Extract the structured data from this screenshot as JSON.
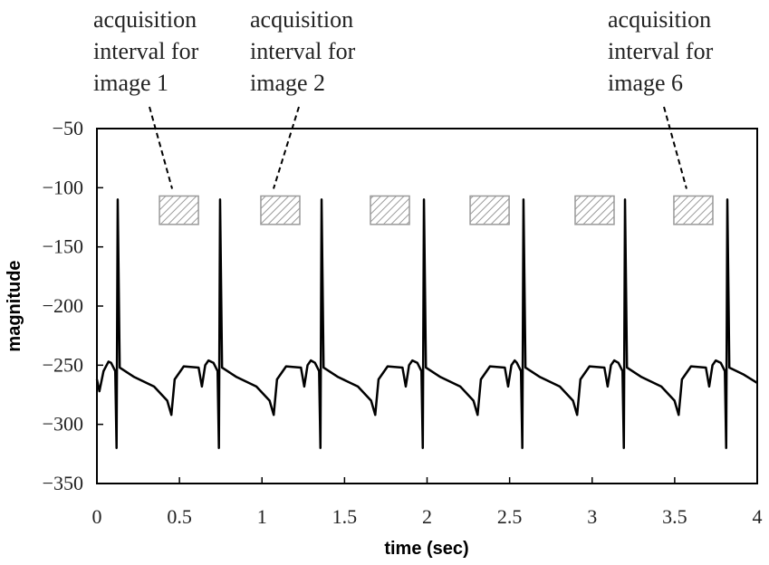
{
  "chart_data": {
    "type": "line",
    "xlabel": "time (sec)",
    "ylabel": "magnitude",
    "xlim": [
      0,
      4
    ],
    "ylim": [
      -350,
      -50
    ],
    "xticks": [
      0,
      0.5,
      1,
      1.5,
      2,
      2.5,
      3,
      3.5,
      4
    ],
    "yticks": [
      {
        "value": -50,
        "label": "−50"
      },
      {
        "value": -100,
        "label": "−100"
      },
      {
        "value": -150,
        "label": "−150"
      },
      {
        "value": -200,
        "label": "−200"
      },
      {
        "value": -250,
        "label": "−250"
      },
      {
        "value": -300,
        "label": "−300"
      },
      {
        "value": -350,
        "label": "−350"
      }
    ],
    "color": "#000000",
    "x": [
      0,
      0.015,
      0.04,
      0.07,
      0.086,
      0.111,
      0.119,
      0.126,
      0.138,
      0.226,
      0.346,
      0.426,
      0.451,
      0.471,
      0.526,
      0.616,
      0.636,
      0.656,
      0.676,
      0.706,
      0.731,
      0.739,
      0.746,
      0.758,
      0.846,
      0.966,
      1.046,
      1.071,
      1.091,
      1.146,
      1.236,
      1.256,
      1.276,
      1.296,
      1.321,
      1.346,
      1.354,
      1.361,
      1.373,
      1.461,
      1.581,
      1.661,
      1.686,
      1.706,
      1.761,
      1.851,
      1.871,
      1.891,
      1.911,
      1.941,
      1.966,
      1.974,
      1.981,
      1.993,
      2.081,
      2.201,
      2.281,
      2.306,
      2.326,
      2.381,
      2.471,
      2.491,
      2.511,
      2.531,
      2.544,
      2.569,
      2.577,
      2.584,
      2.596,
      2.684,
      2.804,
      2.884,
      2.909,
      2.929,
      2.984,
      3.074,
      3.094,
      3.114,
      3.134,
      3.159,
      3.184,
      3.192,
      3.199,
      3.211,
      3.299,
      3.419,
      3.499,
      3.524,
      3.544,
      3.599,
      3.689,
      3.709,
      3.729,
      3.749,
      3.779,
      3.804,
      3.812,
      3.819,
      3.831,
      3.919,
      4.0
    ],
    "values": [
      -262,
      -272,
      -255,
      -247,
      -248,
      -255,
      -320,
      -110,
      -252,
      -260,
      -268,
      -280,
      -292,
      -262,
      -251,
      -252,
      -268,
      -250,
      -246,
      -248,
      -255,
      -320,
      -110,
      -252,
      -260,
      -268,
      -280,
      -292,
      -262,
      -251,
      -252,
      -268,
      -250,
      -246,
      -248,
      -255,
      -320,
      -110,
      -252,
      -260,
      -268,
      -280,
      -292,
      -262,
      -251,
      -252,
      -268,
      -250,
      -246,
      -248,
      -255,
      -320,
      -110,
      -252,
      -260,
      -268,
      -280,
      -292,
      -262,
      -251,
      -252,
      -268,
      -250,
      -246,
      -248,
      -255,
      -320,
      -110,
      -252,
      -260,
      -268,
      -280,
      -292,
      -262,
      -251,
      -252,
      -268,
      -250,
      -246,
      -248,
      -255,
      -320,
      -110,
      -252,
      -260,
      -268,
      -280,
      -292,
      -262,
      -251,
      -252,
      -268,
      -250,
      -246,
      -248,
      -255,
      -320,
      -110,
      -252,
      -258,
      -265
    ],
    "interval_y": [
      -107,
      -131
    ],
    "intervals": [
      {
        "x": [
          0.379,
          0.615
        ],
        "label": [
          "acquisition",
          "interval for",
          "image 1"
        ]
      },
      {
        "x": [
          0.993,
          1.229
        ],
        "label": [
          "acquisition",
          "interval for",
          "image 2"
        ]
      },
      {
        "x": [
          1.657,
          1.893
        ]
      },
      {
        "x": [
          2.261,
          2.497
        ]
      },
      {
        "x": [
          2.897,
          3.133
        ]
      },
      {
        "x": [
          3.495,
          3.731
        ],
        "label": [
          "acquisition",
          "interval for",
          "image 6"
        ]
      }
    ]
  }
}
